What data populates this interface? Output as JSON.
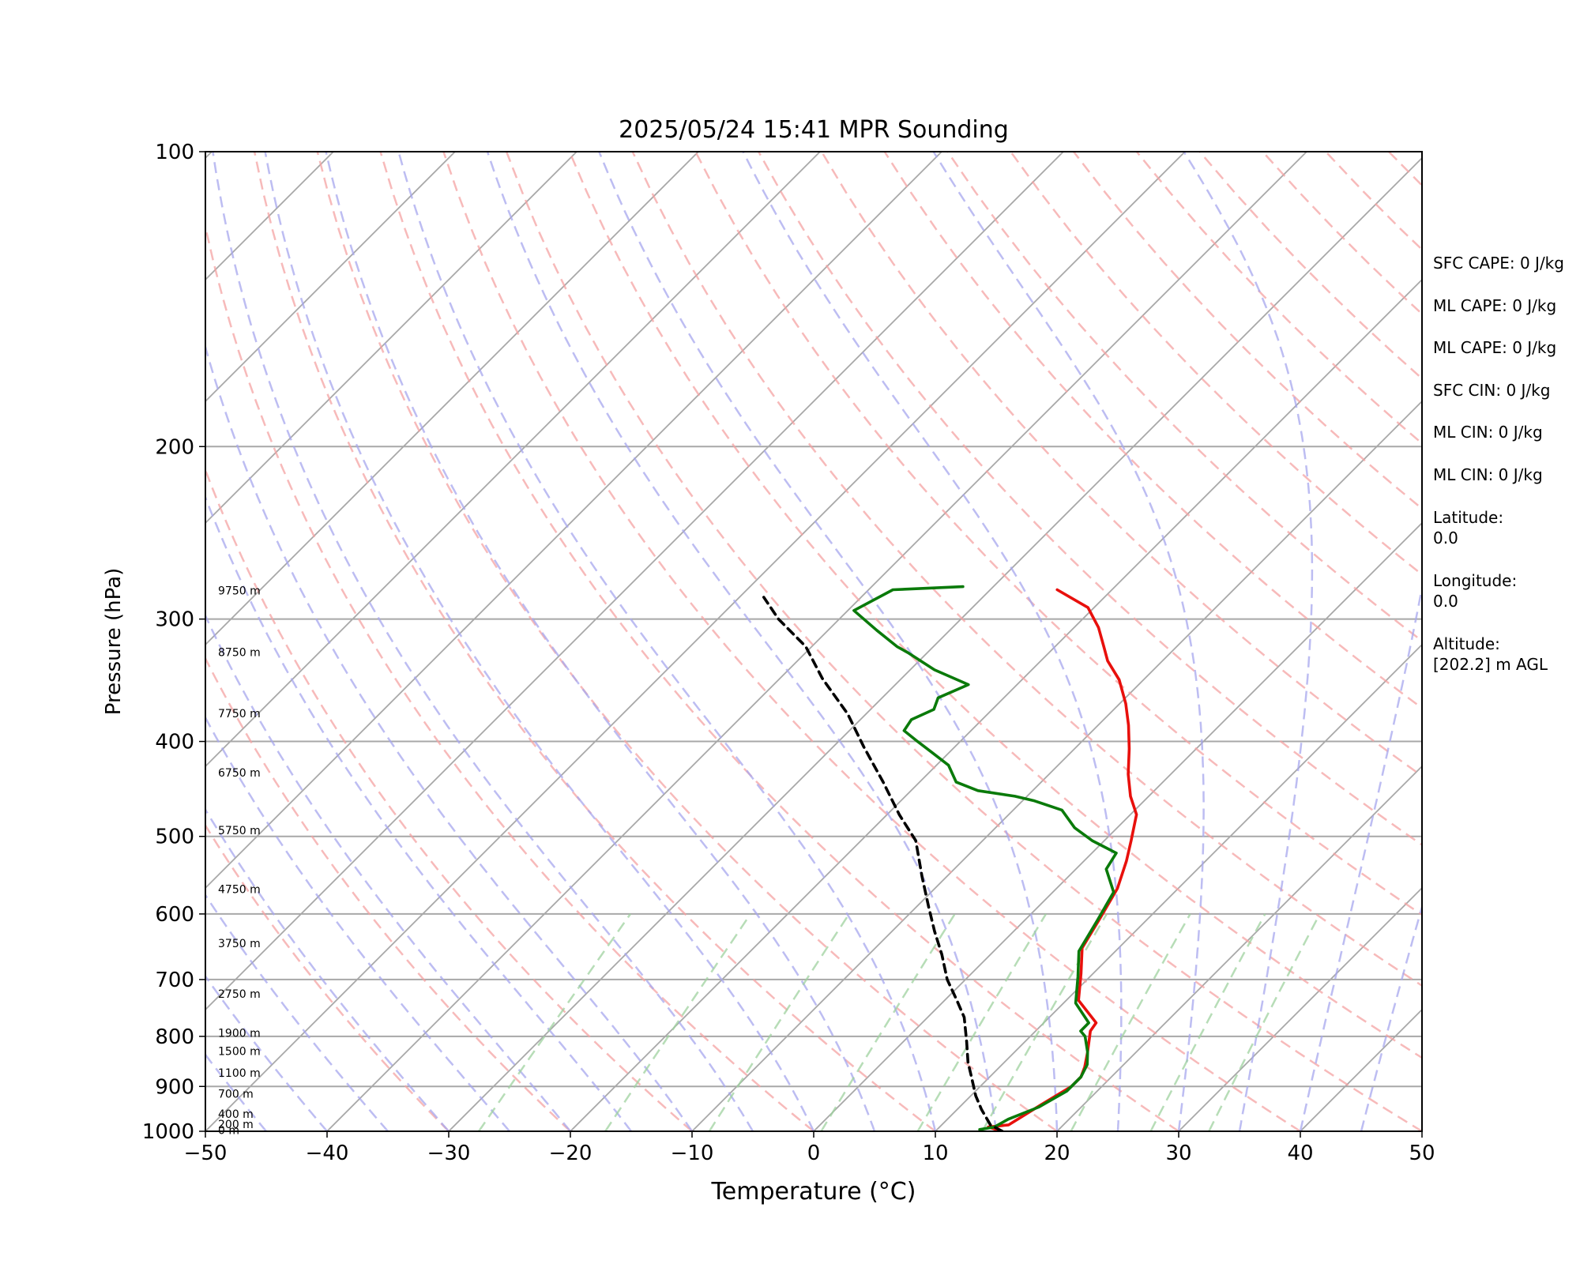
{
  "chart_data": {
    "type": "line",
    "title": "2025/05/24 15:41 MPR Sounding",
    "xlabel": "Temperature (°C)",
    "ylabel": "Pressure (hPa)",
    "xlim": [
      -50,
      50
    ],
    "ylim": [
      1000,
      100
    ],
    "y_scale": "log",
    "skew": true,
    "xticks": [
      -50,
      -40,
      -30,
      -20,
      -10,
      0,
      10,
      20,
      30,
      40,
      50
    ],
    "xtick_labels": [
      "−50",
      "−40",
      "−30",
      "−20",
      "−10",
      "0",
      "10",
      "20",
      "30",
      "40",
      "50"
    ],
    "yticks": [
      1000,
      900,
      800,
      700,
      600,
      500,
      400,
      300,
      200,
      100
    ],
    "ytick_labels": [
      "1000",
      "900",
      "800",
      "700",
      "600",
      "500",
      "400",
      "300",
      "200",
      "100"
    ],
    "grid": true,
    "height_labels": [
      {
        "p": 999,
        "label": "0 m"
      },
      {
        "p": 985,
        "label": "200 m"
      },
      {
        "p": 962,
        "label": "400 m"
      },
      {
        "p": 917,
        "label": "700 m"
      },
      {
        "p": 873,
        "label": "1100 m"
      },
      {
        "p": 830,
        "label": "1500 m"
      },
      {
        "p": 795,
        "label": "1900 m"
      },
      {
        "p": 725,
        "label": "2750 m"
      },
      {
        "p": 644,
        "label": "3750 m"
      },
      {
        "p": 567,
        "label": "4750 m"
      },
      {
        "p": 494,
        "label": "5750 m"
      },
      {
        "p": 431,
        "label": "6750 m"
      },
      {
        "p": 375,
        "label": "7750 m"
      },
      {
        "p": 325,
        "label": "8750 m"
      },
      {
        "p": 281,
        "label": "9750 m"
      }
    ],
    "series": [
      {
        "color": "#e8100c",
        "points": [
          [
            15.5,
            1000
          ],
          [
            14.0,
            990
          ],
          [
            15.5,
            985
          ],
          [
            16.5,
            940
          ],
          [
            17.5,
            900
          ],
          [
            17.5,
            880
          ],
          [
            17.0,
            860
          ],
          [
            16.0,
            830
          ],
          [
            14.5,
            790
          ],
          [
            14.3,
            775
          ],
          [
            11.0,
            735
          ],
          [
            9.0,
            690
          ],
          [
            7.0,
            650
          ],
          [
            6.0,
            605
          ],
          [
            5.0,
            565
          ],
          [
            3.5,
            530
          ],
          [
            2.2,
            505
          ],
          [
            0.5,
            475
          ],
          [
            -1.5,
            455
          ],
          [
            -3.5,
            432
          ],
          [
            -5.5,
            407
          ],
          [
            -7.5,
            385
          ],
          [
            -9.5,
            366
          ],
          [
            -12.0,
            346
          ],
          [
            -14.5,
            331
          ],
          [
            -16.0,
            320
          ],
          [
            -18.0,
            306
          ],
          [
            -20.5,
            292
          ],
          [
            -24.5,
            280
          ]
        ]
      },
      {
        "color": "#0a7a0a",
        "points": [
          [
            13.5,
            996
          ],
          [
            14.5,
            990
          ],
          [
            15.0,
            972
          ],
          [
            16.5,
            945
          ],
          [
            17.5,
            910
          ],
          [
            17.5,
            880
          ],
          [
            17.0,
            855
          ],
          [
            16.0,
            830
          ],
          [
            14.5,
            800
          ],
          [
            13.7,
            790
          ],
          [
            13.7,
            775
          ],
          [
            11.0,
            740
          ],
          [
            9.0,
            695
          ],
          [
            7.0,
            655
          ],
          [
            6.0,
            610
          ],
          [
            5.0,
            570
          ],
          [
            2.5,
            540
          ],
          [
            2.0,
            520
          ],
          [
            -1.0,
            505
          ],
          [
            -3.5,
            490
          ],
          [
            -6.0,
            470
          ],
          [
            -9.0,
            460
          ],
          [
            -11.0,
            455
          ],
          [
            -14.5,
            449
          ],
          [
            -17.0,
            440
          ],
          [
            -19.0,
            423
          ],
          [
            -21.5,
            410
          ],
          [
            -23.5,
            400
          ],
          [
            -25.5,
            390
          ],
          [
            -25.8,
            380
          ],
          [
            -24.8,
            371
          ],
          [
            -25.4,
            361
          ],
          [
            -24.0,
            350
          ],
          [
            -28.0,
            338
          ],
          [
            -31.5,
            325
          ],
          [
            -33.0,
            320
          ],
          [
            -36.0,
            308
          ],
          [
            -39.5,
            294
          ],
          [
            -38.0,
            280
          ],
          [
            -32.5,
            278
          ]
        ]
      },
      {
        "color": "#000000",
        "dashed": true,
        "points": [
          [
            15.5,
            1000
          ],
          [
            14.5,
            990
          ],
          [
            14.0,
            985
          ],
          [
            12.0,
            950
          ],
          [
            10.4,
            920
          ],
          [
            8.5,
            880
          ],
          [
            7.0,
            850
          ],
          [
            5.2,
            810
          ],
          [
            3.0,
            765
          ],
          [
            1.0,
            735
          ],
          [
            -1.5,
            700
          ],
          [
            -4.0,
            660
          ],
          [
            -6.5,
            625
          ],
          [
            -9.0,
            590
          ],
          [
            -12.0,
            550
          ],
          [
            -15.5,
            505
          ],
          [
            -19.0,
            475
          ],
          [
            -23.0,
            440
          ],
          [
            -27.5,
            405
          ],
          [
            -31.5,
            375
          ],
          [
            -36.5,
            345
          ],
          [
            -40.5,
            320
          ],
          [
            -45.0,
            300
          ],
          [
            -48.0,
            285
          ]
        ]
      }
    ],
    "stats": {
      "sfc_cape": "SFC CAPE: 0 J/kg",
      "ml_cape_1": "ML CAPE: 0 J/kg",
      "ml_cape_2": "ML CAPE: 0 J/kg",
      "sfc_cin": "SFC CIN: 0 J/kg",
      "ml_cin_1": "ML CIN: 0 J/kg",
      "ml_cin_2": "ML CIN: 0 J/kg",
      "latitude_label": "Latitude:",
      "latitude_value": "0.0",
      "longitude_label": "Longitude:",
      "longitude_value": "0.0",
      "altitude_label": "Altitude:",
      "altitude_value": "[202.2] m AGL"
    },
    "colors": {
      "isotherm": "#a8a8a8",
      "isobar": "#a8a8a8",
      "dry_adiabat": "#f4a3a3",
      "moist_adiabat": "#a7a7ee",
      "mixing_ratio": "#9fd29f"
    }
  }
}
